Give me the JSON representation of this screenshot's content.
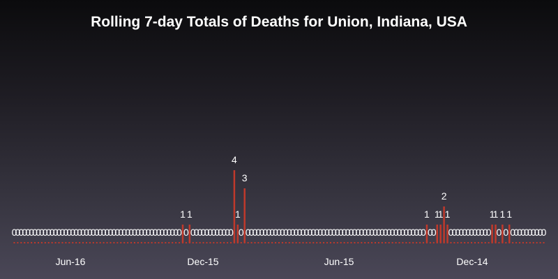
{
  "chart_data": {
    "type": "bar",
    "title": "Rolling 7-day Totals of Deaths for Union, Indiana, USA",
    "xlabel": "",
    "ylabel": "",
    "ylim": [
      0,
      4
    ],
    "x_ticks": [
      "Jun-16",
      "Dec-15",
      "Jun-15",
      "Dec-14"
    ],
    "bar_color": "#c0392b",
    "values": [
      0,
      0,
      0,
      0,
      0,
      0,
      0,
      0,
      0,
      0,
      0,
      0,
      0,
      0,
      0,
      0,
      0,
      0,
      0,
      0,
      0,
      0,
      0,
      0,
      0,
      0,
      0,
      0,
      0,
      0,
      0,
      0,
      0,
      0,
      0,
      0,
      0,
      0,
      0,
      0,
      0,
      0,
      0,
      0,
      0,
      0,
      0,
      0,
      0,
      1,
      0,
      1,
      0,
      0,
      0,
      0,
      0,
      0,
      0,
      0,
      0,
      0,
      0,
      0,
      4,
      1,
      0,
      3,
      0,
      0,
      0,
      0,
      0,
      0,
      0,
      0,
      0,
      0,
      0,
      0,
      0,
      0,
      0,
      0,
      0,
      0,
      0,
      0,
      0,
      0,
      0,
      0,
      0,
      0,
      0,
      0,
      0,
      0,
      0,
      0,
      0,
      0,
      0,
      0,
      0,
      0,
      0,
      0,
      0,
      0,
      0,
      0,
      0,
      0,
      0,
      0,
      0,
      0,
      0,
      0,
      1,
      0,
      0,
      1,
      1,
      2,
      1,
      0,
      0,
      0,
      0,
      0,
      0,
      0,
      0,
      0,
      0,
      0,
      0,
      1,
      1,
      0,
      1,
      0,
      1,
      0,
      0,
      0,
      0,
      0,
      0,
      0,
      0,
      0,
      0
    ]
  }
}
